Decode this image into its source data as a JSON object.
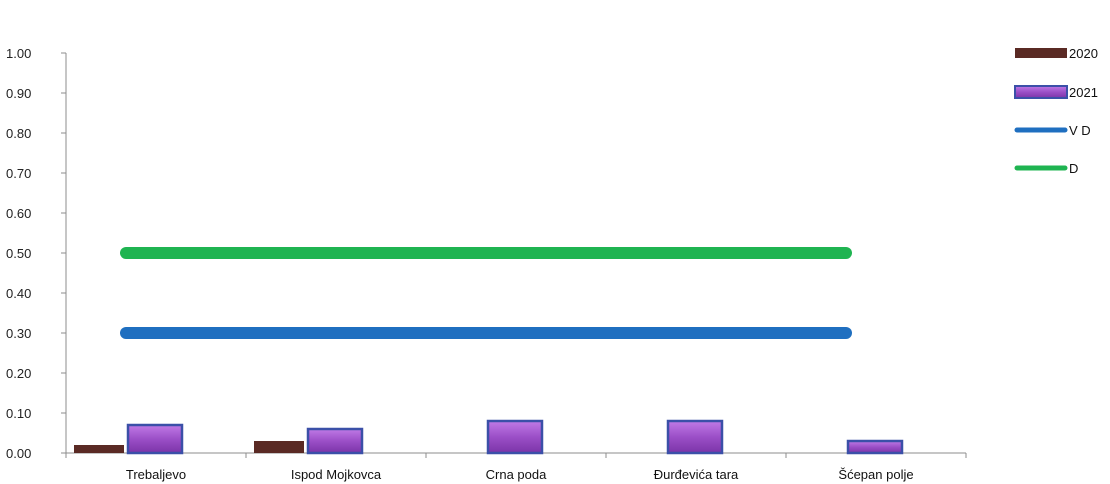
{
  "chart_data": {
    "type": "bar",
    "title": "",
    "xlabel": "",
    "ylabel": "",
    "ylim": [
      0,
      1
    ],
    "yticks": [
      "0.00",
      "0.10",
      "0.20",
      "0.30",
      "0.40",
      "0.50",
      "0.60",
      "0.70",
      "0.80",
      "0.90",
      "1.00"
    ],
    "categories": [
      "Trebaljevo",
      "Ispod Mojkovca",
      "Crna poda",
      "Đurđevića tara",
      "Šćepan polje"
    ],
    "series": [
      {
        "name": "2020",
        "kind": "bar",
        "color": "#5a2a24",
        "values": [
          0.02,
          0.03,
          null,
          null,
          null
        ]
      },
      {
        "name": "2021",
        "kind": "bar",
        "color": "#9b4fc7",
        "border": "#3b50a8",
        "values": [
          0.07,
          0.06,
          0.08,
          0.08,
          0.03
        ]
      },
      {
        "name": "V D",
        "kind": "line",
        "color": "#1f6fc0",
        "values": [
          0.3,
          0.3,
          0.3,
          0.3,
          0.3
        ]
      },
      {
        "name": "D",
        "kind": "line",
        "color": "#1fb451",
        "values": [
          0.5,
          0.5,
          0.5,
          0.5,
          0.5
        ]
      }
    ],
    "grid": false,
    "legend": "right"
  }
}
